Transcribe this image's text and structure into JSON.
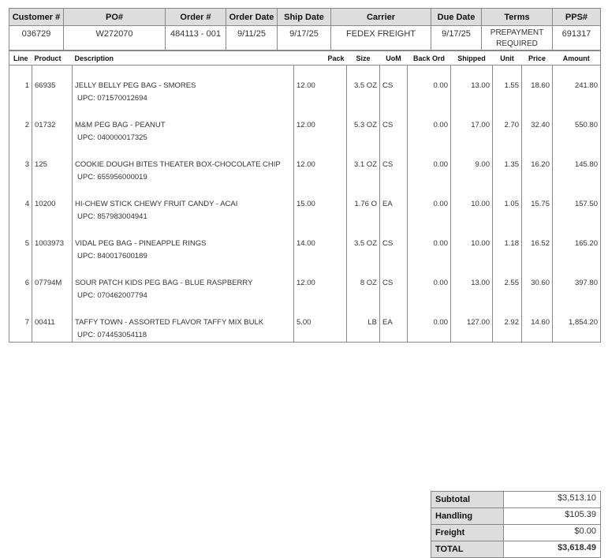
{
  "header": {
    "columns": [
      "Customer #",
      "PO#",
      "Order #",
      "Order Date",
      "Ship Date",
      "Carrier",
      "Due Date",
      "Terms",
      "PPS#"
    ],
    "values": [
      "036729",
      "W272070",
      "484113 - 001",
      "9/11/25",
      "9/17/25",
      "FEDEX FREIGHT",
      "9/17/25",
      "PREPAYMENT REQUIRED",
      "691317"
    ]
  },
  "items": {
    "columns": [
      "Line",
      "Product",
      "Description",
      "Pack",
      "Size",
      "UoM",
      "Back Ord",
      "Shipped",
      "Unit",
      "Price",
      "Amount"
    ],
    "rows": [
      {
        "line": "1",
        "product": "66935",
        "description": "JELLY BELLY PEG BAG - SMORES",
        "upc": "UPC: 071570012694",
        "pack": "12.00",
        "size": "3.5 OZ",
        "uom": "CS",
        "back_ord": "0.00",
        "shipped": "13.00",
        "unit": "1.55",
        "price": "18.60",
        "amount": "241.80"
      },
      {
        "line": "2",
        "product": "01732",
        "description": "M&M PEG BAG - PEANUT",
        "upc": "UPC: 040000017325",
        "pack": "12.00",
        "size": "5.3 OZ",
        "uom": "CS",
        "back_ord": "0.00",
        "shipped": "17.00",
        "unit": "2.70",
        "price": "32.40",
        "amount": "550.80"
      },
      {
        "line": "3",
        "product": "125",
        "description": "COOKIE DOUGH BITES THEATER BOX-CHOCOLATE CHIP",
        "upc": "UPC: 655956000019",
        "pack": "12.00",
        "size": "3.1 OZ",
        "uom": "CS",
        "back_ord": "0.00",
        "shipped": "9.00",
        "unit": "1.35",
        "price": "16.20",
        "amount": "145.80"
      },
      {
        "line": "4",
        "product": "10200",
        "description": "HI-CHEW STICK CHEWY FRUIT CANDY - ACAI",
        "upc": "UPC: 857983004941",
        "pack": "15.00",
        "size": "1.76 O",
        "uom": "EA",
        "back_ord": "0.00",
        "shipped": "10.00",
        "unit": "1.05",
        "price": "15.75",
        "amount": "157.50"
      },
      {
        "line": "5",
        "product": "1003973",
        "description": "VIDAL PEG BAG - PINEAPPLE RINGS",
        "upc": "UPC: 840017600189",
        "pack": "14.00",
        "size": "3.5 OZ",
        "uom": "CS",
        "back_ord": "0.00",
        "shipped": "10.00",
        "unit": "1.18",
        "price": "16.52",
        "amount": "165.20"
      },
      {
        "line": "6",
        "product": "07794M",
        "description": "SOUR PATCH KIDS PEG BAG - BLUE RASPBERRY",
        "upc": "UPC: 070462007794",
        "pack": "12.00",
        "size": "8 OZ",
        "uom": "CS",
        "back_ord": "0.00",
        "shipped": "13.00",
        "unit": "2.55",
        "price": "30.60",
        "amount": "397.80"
      },
      {
        "line": "7",
        "product": "00411",
        "description": "TAFFY TOWN - ASSORTED FLAVOR TAFFY MIX BULK",
        "upc": "UPC: 074453054118",
        "pack": "5.00",
        "size": "LB",
        "uom": "EA",
        "back_ord": "0.00",
        "shipped": "127.00",
        "unit": "2.92",
        "price": "14.60",
        "amount": "1,854.20"
      }
    ]
  },
  "totals": [
    [
      "Subtotal",
      "$3,513.10"
    ],
    [
      "Handling",
      "$105.39"
    ],
    [
      "Freight",
      "$0.00"
    ],
    [
      "TOTAL",
      "$3,618.49"
    ]
  ]
}
